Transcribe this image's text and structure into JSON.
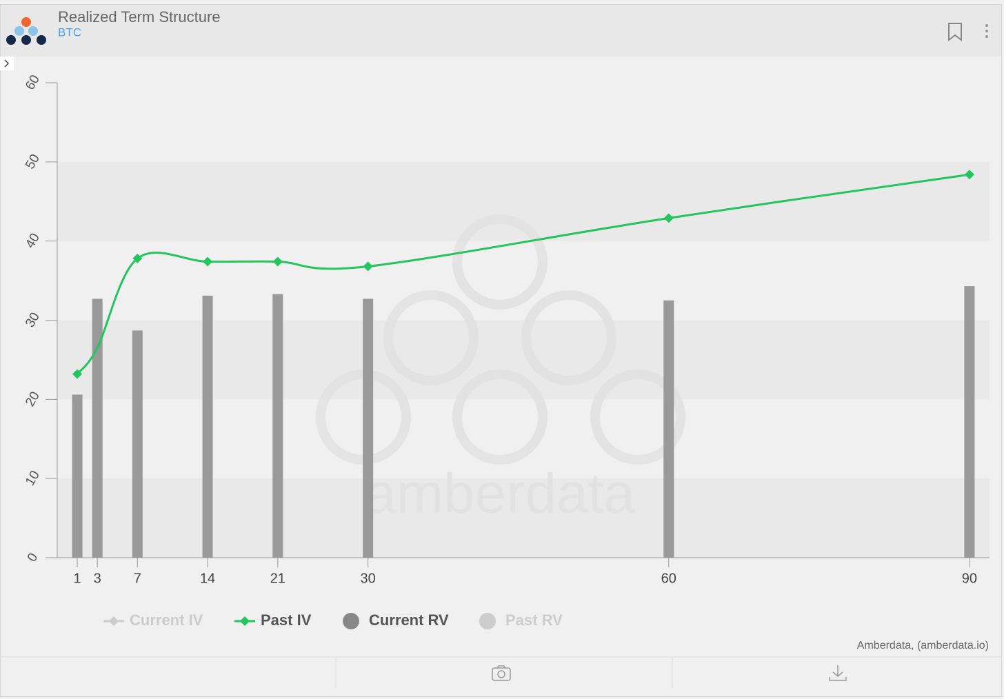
{
  "header": {
    "title": "Realized Term Structure",
    "subtitle": "BTC"
  },
  "chart_data": {
    "type": "bar",
    "x": [
      1,
      3,
      7,
      14,
      21,
      30,
      60,
      90
    ],
    "xlim": [
      -1,
      92
    ],
    "xticks": [
      1,
      3,
      7,
      14,
      21,
      30,
      60,
      90
    ],
    "ylim": [
      0,
      60
    ],
    "yticks": [
      0,
      10,
      20,
      30,
      40,
      50,
      60
    ],
    "series": [
      {
        "name": "Current IV",
        "type": "line",
        "color": "#cccccc",
        "visible": false,
        "values": [
          null,
          null,
          null,
          null,
          null,
          null,
          null,
          null
        ]
      },
      {
        "name": "Past IV",
        "type": "line",
        "color": "#22c55e",
        "visible": true,
        "values": [
          23.2,
          26.5,
          37.8,
          37.4,
          37.4,
          36.8,
          42.9,
          48.4
        ]
      },
      {
        "name": "Current RV",
        "type": "bar",
        "color": "#999999",
        "visible": true,
        "values": [
          20.6,
          32.7,
          28.7,
          33.1,
          33.3,
          32.7,
          32.5,
          34.3
        ]
      },
      {
        "name": "Past RV",
        "type": "bar",
        "color": "#cccccc",
        "visible": false,
        "values": [
          null,
          null,
          null,
          null,
          null,
          null,
          null,
          null
        ]
      }
    ],
    "watermark": "amberdata",
    "credit": "Amberdata, (amberdata.io)"
  }
}
